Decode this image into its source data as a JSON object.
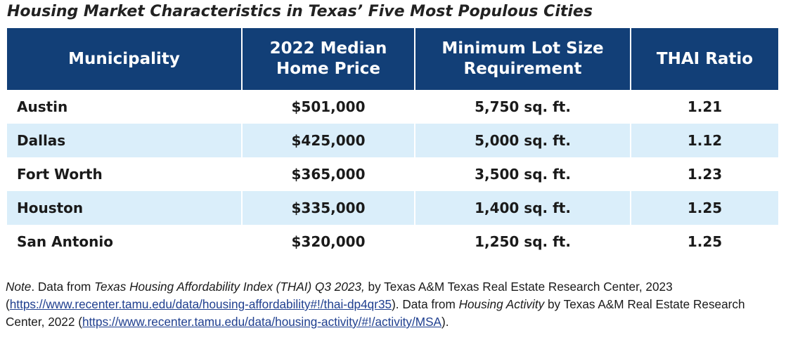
{
  "title": "Housing Market Characteristics in Texas’ Five Most Populous Cities",
  "headers": {
    "municipality": "Municipality",
    "price_line1": "2022 Median",
    "price_line2": "Home Price",
    "lot_line1": "Minimum Lot Size",
    "lot_line2": "Requirement",
    "thai": "THAI Ratio"
  },
  "rows": [
    {
      "municipality": "Austin",
      "price": "$501,000",
      "lot": "5,750 sq. ft.",
      "thai": "1.21"
    },
    {
      "municipality": "Dallas",
      "price": "$425,000",
      "lot": "5,000 sq. ft.",
      "thai": "1.12"
    },
    {
      "municipality": "Fort Worth",
      "price": "$365,000",
      "lot": "3,500 sq. ft.",
      "thai": "1.23"
    },
    {
      "municipality": "Houston",
      "price": "$335,000",
      "lot": "1,400 sq. ft.",
      "thai": "1.25"
    },
    {
      "municipality": "San Antonio",
      "price": "$320,000",
      "lot": "1,250 sq. ft.",
      "thai": "1.25"
    }
  ],
  "note": {
    "label": "Note",
    "t1": ". Data from ",
    "src1": "Texas Housing Affordability Index (THAI) Q3 2023,",
    "t2": " by Texas A&M Texas Real Estate Research Center, 2023 (",
    "url1": "https://www.recenter.tamu.edu/data/housing-affordability#!/thai-dp4qr35",
    "t3": "). Data from ",
    "src2": "Housing Activity",
    "t4": " by Texas A&M Real Estate Research Center, 2022 (",
    "url2": "https://www.recenter.tamu.edu/data/housing-activity/#!/activity/MSA",
    "t5": ")."
  },
  "colors": {
    "header_bg": "#123f77",
    "shaded_row": "#daeefa",
    "link": "#1f3f8f"
  }
}
